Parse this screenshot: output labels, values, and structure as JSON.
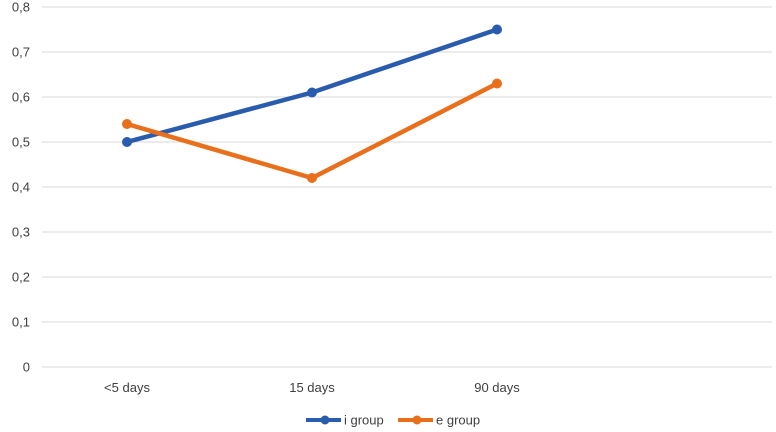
{
  "chart_data": {
    "type": "line",
    "categories": [
      "<5 days",
      "15 days",
      "90 days"
    ],
    "series": [
      {
        "name": "i group",
        "color": "#2A5CAD",
        "values": [
          0.5,
          0.61,
          0.75
        ]
      },
      {
        "name": "e group",
        "color": "#E8701C",
        "values": [
          0.54,
          0.42,
          0.63
        ]
      }
    ],
    "title": "",
    "xlabel": "",
    "ylabel": "",
    "ylim": [
      0,
      0.8
    ],
    "ytick_step": 0.1,
    "ytick_labels": [
      "0",
      "0,1",
      "0,2",
      "0,3",
      "0,4",
      "0,5",
      "0,6",
      "0,7",
      "0,8"
    ],
    "decimal_separator": ",",
    "grid": true,
    "legend_position": "bottom",
    "marker": "circle"
  },
  "style": {
    "background": "#FFFFFF",
    "gridline_color": "#D9D9D9",
    "axis_line_color": "#D9D9D9",
    "text_color": "#3F3F3F"
  }
}
